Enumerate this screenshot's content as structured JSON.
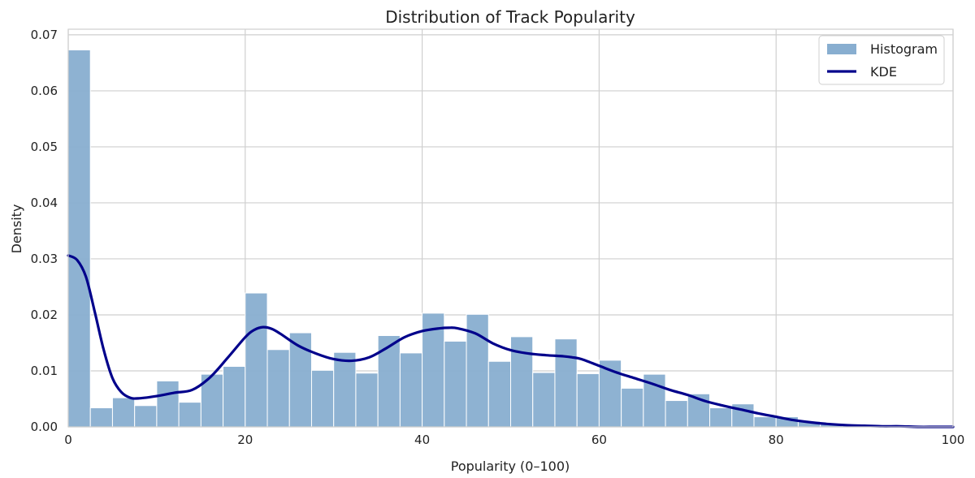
{
  "chart_data": {
    "type": "bar",
    "title": "Distribution of Track Popularity",
    "xlabel": "Popularity (0–100)",
    "ylabel": "Density",
    "xlim": [
      0,
      100
    ],
    "ylim": [
      0,
      0.071
    ],
    "x_ticks": [
      "0",
      "20",
      "40",
      "60",
      "80",
      "100"
    ],
    "y_ticks": [
      "0.00",
      "0.01",
      "0.02",
      "0.03",
      "0.04",
      "0.05",
      "0.06",
      "0.07"
    ],
    "grid": true,
    "legend_position": "top-right",
    "bin_width": 2.5,
    "series": [
      {
        "name": "Histogram",
        "kind": "histogram",
        "color": "#88aed0",
        "bin_edges_start": [
          0,
          2.5,
          5,
          7.5,
          10,
          12.5,
          15,
          17.5,
          20,
          22.5,
          25,
          27.5,
          30,
          32.5,
          35,
          37.5,
          40,
          42.5,
          45,
          47.5,
          50,
          52.5,
          55,
          57.5,
          60,
          62.5,
          65,
          67.5,
          70,
          72.5,
          75,
          77.5,
          80,
          82.5,
          85,
          87.5,
          90,
          92.5,
          95,
          97.5
        ],
        "values": [
          0.0673,
          0.0034,
          0.0052,
          0.0038,
          0.0082,
          0.0044,
          0.0094,
          0.0108,
          0.0239,
          0.0138,
          0.0168,
          0.0101,
          0.0133,
          0.0096,
          0.0163,
          0.0132,
          0.0203,
          0.0153,
          0.0201,
          0.0117,
          0.0161,
          0.0097,
          0.0157,
          0.0095,
          0.0119,
          0.0069,
          0.0094,
          0.0047,
          0.0059,
          0.0034,
          0.0041,
          0.0018,
          0.0018,
          0.001,
          0.0005,
          0.0003,
          0.0001,
          0.0001,
          0.0,
          0.0
        ]
      },
      {
        "name": "KDE",
        "kind": "line",
        "color": "#00008b",
        "x": [
          0,
          1,
          2,
          3,
          4,
          5,
          6,
          7,
          8,
          10,
          12,
          14,
          16,
          18,
          20,
          21,
          22,
          23,
          24,
          26,
          28,
          30,
          32,
          34,
          36,
          38,
          40,
          42,
          43,
          44,
          46,
          48,
          50,
          52,
          54,
          56,
          57,
          58,
          60,
          62,
          64,
          66,
          68,
          70,
          72,
          74,
          76,
          78,
          80,
          82,
          84,
          86,
          88,
          90,
          92,
          94,
          96,
          98,
          100
        ],
        "y": [
          0.0306,
          0.0298,
          0.0268,
          0.0205,
          0.0138,
          0.0087,
          0.0062,
          0.0052,
          0.0051,
          0.0055,
          0.0061,
          0.0066,
          0.0088,
          0.0123,
          0.016,
          0.0173,
          0.0178,
          0.0175,
          0.0166,
          0.0145,
          0.0131,
          0.0121,
          0.0118,
          0.0124,
          0.0141,
          0.016,
          0.0171,
          0.0176,
          0.0177,
          0.0176,
          0.0167,
          0.0149,
          0.0137,
          0.0131,
          0.0128,
          0.0126,
          0.0124,
          0.0121,
          0.0109,
          0.0097,
          0.0087,
          0.0077,
          0.0066,
          0.0057,
          0.0046,
          0.0038,
          0.0031,
          0.0024,
          0.0018,
          0.0012,
          0.0008,
          0.0005,
          0.0003,
          0.0002,
          0.0001,
          0.0001,
          0.0,
          0.0,
          0.0
        ]
      }
    ]
  }
}
